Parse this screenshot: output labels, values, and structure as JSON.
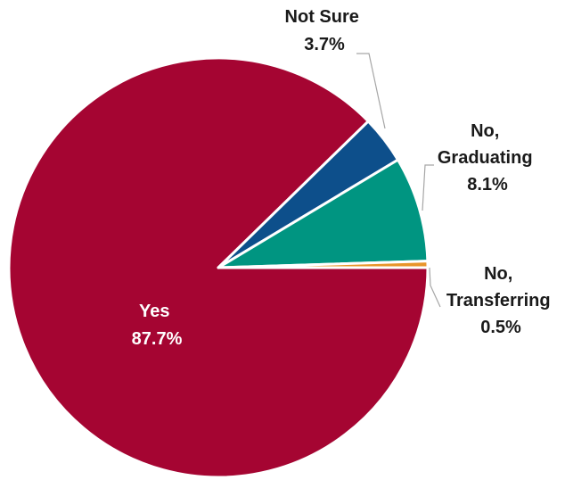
{
  "chart_data": {
    "type": "pie",
    "slices": [
      {
        "label_lines": [
          "Yes"
        ],
        "value_label": "87.7%",
        "value": 87.7,
        "color": "#a50532",
        "label_color": "#ffffff"
      },
      {
        "label_lines": [
          "Not Sure"
        ],
        "value_label": "3.7%",
        "value": 3.7,
        "color": "#0d4f8b",
        "label_color": "#1a1a1a"
      },
      {
        "label_lines": [
          "No,",
          "Graduating"
        ],
        "value_label": "8.1%",
        "value": 8.1,
        "color": "#009581",
        "label_color": "#1a1a1a"
      },
      {
        "label_lines": [
          "No,",
          "Transferring"
        ],
        "value_label": "0.5%",
        "value": 0.5,
        "color": "#e8952a",
        "label_color": "#1a1a1a"
      }
    ]
  }
}
